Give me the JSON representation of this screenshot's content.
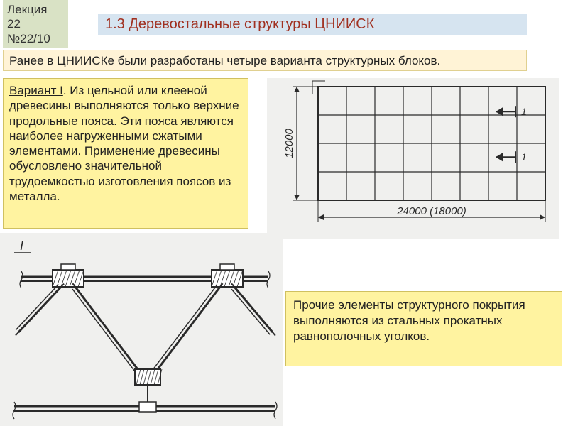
{
  "lecture": {
    "line1": "Лекция",
    "line2": "22",
    "line3": "№22/10"
  },
  "title": "1.3 Деревостальные структуры ЦНИИСК",
  "intro": "Ранее в ЦНИИСКе были разработаны четыре варианта структурных блоков.",
  "variant": {
    "label": "Вариант I",
    "text": ". Из цельной или клееной древесины выполняются только верхние продольные пояса. Эти пояса являются наиболее нагруженными сжатыми элементами. Применение древесины обусловлено значительной трудоемкостью изготовления поясов из металла."
  },
  "note": "Прочие элементы структурного покрытия выполняются из стальных прокатных равнополочных уголков.",
  "plan": {
    "width_label": "24000  (18000)",
    "height_label": "12000",
    "marker": "1",
    "section_marker": "I",
    "rows": 4,
    "cols": 8,
    "grid_color": "#2a2a2a",
    "bg": "#f0f0ee",
    "text_color": "#2a2a2a",
    "font_size": 14
  },
  "colors": {
    "lecture_bg": "#d9e2c5",
    "title_bg": "#d6e4f0",
    "title_fg": "#a03020",
    "intro_bg": "#fff3d6",
    "yellow_bg": "#fff3a0",
    "drawing_bg": "#f0f0ee",
    "ink": "#2a2a2a"
  }
}
